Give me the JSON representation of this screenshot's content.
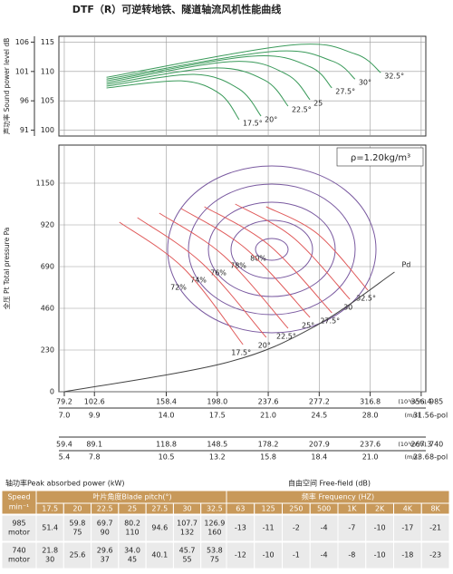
{
  "header": {
    "title": "DTF（R）可逆转地铁、隧道轴流风机性能曲线"
  },
  "chart_data": [
    {
      "type": "line",
      "y_label": "声功率 Sound power level dB",
      "ylim": [
        99,
        116
      ],
      "yticks": [
        100,
        105,
        110,
        115
      ],
      "y2lim": [
        90,
        107
      ],
      "y2ticks": [
        91,
        96,
        101,
        106
      ],
      "grid": true,
      "series": [
        {
          "name": "17.5°",
          "color": "#3a9a5a",
          "x": [
            112,
            170,
            200,
            215
          ],
          "values": [
            107.2,
            108.4,
            106.2,
            101.8
          ]
        },
        {
          "name": "20°",
          "color": "#3a9a5a",
          "x": [
            112,
            180,
            215,
            232
          ],
          "values": [
            107.5,
            109.5,
            107.0,
            102.4
          ]
        },
        {
          "name": "22.5°",
          "color": "#3a9a5a",
          "x": [
            112,
            195,
            235,
            253
          ],
          "values": [
            107.8,
            110.6,
            108.5,
            104.1
          ]
        },
        {
          "name": "25",
          "color": "#3a9a5a",
          "x": [
            112,
            210,
            252,
            270
          ],
          "values": [
            108.1,
            111.7,
            109.5,
            105.2
          ]
        },
        {
          "name": "27.5°",
          "color": "#3a9a5a",
          "x": [
            112,
            225,
            270,
            287
          ],
          "values": [
            108.4,
            112.6,
            110.8,
            107.2
          ]
        },
        {
          "name": "30°",
          "color": "#3a9a5a",
          "x": [
            112,
            240,
            287,
            305
          ],
          "values": [
            108.7,
            113.4,
            111.8,
            108.7
          ]
        },
        {
          "name": "32.5°",
          "color": "#3a9a5a",
          "x": [
            112,
            255,
            305,
            325
          ],
          "values": [
            109.0,
            114.5,
            113.0,
            109.8
          ]
        }
      ]
    },
    {
      "type": "line",
      "y_label": "全压 Pt Total pressure Pa",
      "annotation": "ρ=1.20kg/m³",
      "xlim": [
        75,
        360
      ],
      "xticks": [
        79.2,
        102.6,
        158.4,
        {
          "value": 198,
          "label": "198.0"
        },
        237.6,
        277.2,
        316.8,
        356.4
      ],
      "x_unit": "(10³m³/h)",
      "x_rows": [
        {
          "labels": [
            "7.0",
            "9.9",
            "14.0",
            "17.5",
            "21.0",
            "24.5",
            "28.0",
            "31.5"
          ],
          "unit": "(m/s)"
        },
        {
          "labels": [
            "59.4",
            "89.1",
            "118.8",
            "148.5",
            "178.2",
            "207.9",
            "237.6",
            "267.3"
          ],
          "unit": "(10³m³/h)"
        },
        {
          "labels": [
            "5.4",
            "7.8",
            "10.5",
            "13.2",
            "15.8",
            "18.4",
            "21.0",
            "23.6"
          ],
          "unit": "(m/s)"
        }
      ],
      "speeds": [
        {
          "rpm": "985",
          "poles": "6-pol"
        },
        {
          "rpm": "740",
          "poles": "8-pol"
        }
      ],
      "ylim": [
        0,
        1360
      ],
      "yticks": [
        0,
        230,
        460,
        690,
        920,
        1150
      ],
      "grid": true,
      "series": [
        {
          "name": "17.5°",
          "color": "#e05a5a",
          "x": [
            122,
            172,
            218
          ],
          "values": [
            935,
            680,
            260
          ]
        },
        {
          "name": "20°",
          "color": "#e05a5a",
          "x": [
            136,
            186,
            236
          ],
          "values": [
            960,
            710,
            300
          ]
        },
        {
          "name": "22.5°",
          "color": "#e05a5a",
          "x": [
            153,
            203,
            253
          ],
          "values": [
            985,
            750,
            350
          ]
        },
        {
          "name": "25°",
          "color": "#e05a5a",
          "x": [
            170,
            220,
            270
          ],
          "values": [
            1010,
            790,
            410
          ]
        },
        {
          "name": "27.5°",
          "color": "#e05a5a",
          "x": [
            188,
            238,
            287
          ],
          "values": [
            1020,
            810,
            435
          ]
        },
        {
          "name": "30",
          "color": "#e05a5a",
          "x": [
            212,
            257,
            301
          ],
          "values": [
            1035,
            850,
            510
          ]
        },
        {
          "name": "32.5°",
          "color": "#e05a5a",
          "x": [
            236,
            276,
            315
          ],
          "values": [
            1020,
            870,
            560
          ]
        },
        {
          "name": "Pd",
          "color": "#444444",
          "x": [
            79.2,
            204.7,
            273.7,
            335.7
          ],
          "values": [
            0,
            160,
            360,
            660
          ]
        }
      ],
      "efficiency_color": "#7a5aa0",
      "efficiency": [
        {
          "value": 80,
          "label": "80%"
        },
        {
          "value": 78,
          "label": "78%"
        },
        {
          "value": 76,
          "label": "76%"
        },
        {
          "value": 74,
          "label": "74%"
        },
        {
          "value": 72,
          "label": "72%"
        }
      ]
    }
  ],
  "notes": {
    "power_label": "轴功率Peak absorbed power (kW)",
    "field_label": "自由空间  Free-field  (dB)"
  },
  "table": {
    "speed_header": [
      "Speed",
      "min⁻¹"
    ],
    "pitch_header": "叶片角度Blade pitch(°)",
    "freq_header": "频率  Frequency (HZ)",
    "pitches": [
      "17.5",
      "20",
      "22.5",
      "25",
      "27.5",
      "30",
      "32.5"
    ],
    "freqs": [
      "63",
      "125",
      "250",
      "500",
      "1K",
      "2K",
      "4K",
      "8K"
    ],
    "rows": [
      {
        "speed": [
          "985",
          "motor"
        ],
        "power": [
          [
            "51.4"
          ],
          [
            "59.8",
            "75"
          ],
          [
            "69.7",
            "90"
          ],
          [
            "80.2",
            "110"
          ],
          [
            "94.6"
          ],
          [
            "107.7",
            "132"
          ],
          [
            "126.9",
            "160"
          ]
        ],
        "sound": [
          "-13",
          "-11",
          "-2",
          "-4",
          "-7",
          "-10",
          "-17",
          "-21"
        ]
      },
      {
        "speed": [
          "740",
          "motor"
        ],
        "power": [
          [
            "21.8",
            "30"
          ],
          [
            "25.6"
          ],
          [
            "29.6",
            "37"
          ],
          [
            "34.0",
            "45"
          ],
          [
            "40.1"
          ],
          [
            "45.7",
            "55"
          ],
          [
            "53.8",
            "75"
          ]
        ],
        "sound": [
          "-12",
          "-10",
          "-1",
          "-4",
          "-8",
          "-10",
          "-18",
          "-23"
        ]
      }
    ]
  }
}
